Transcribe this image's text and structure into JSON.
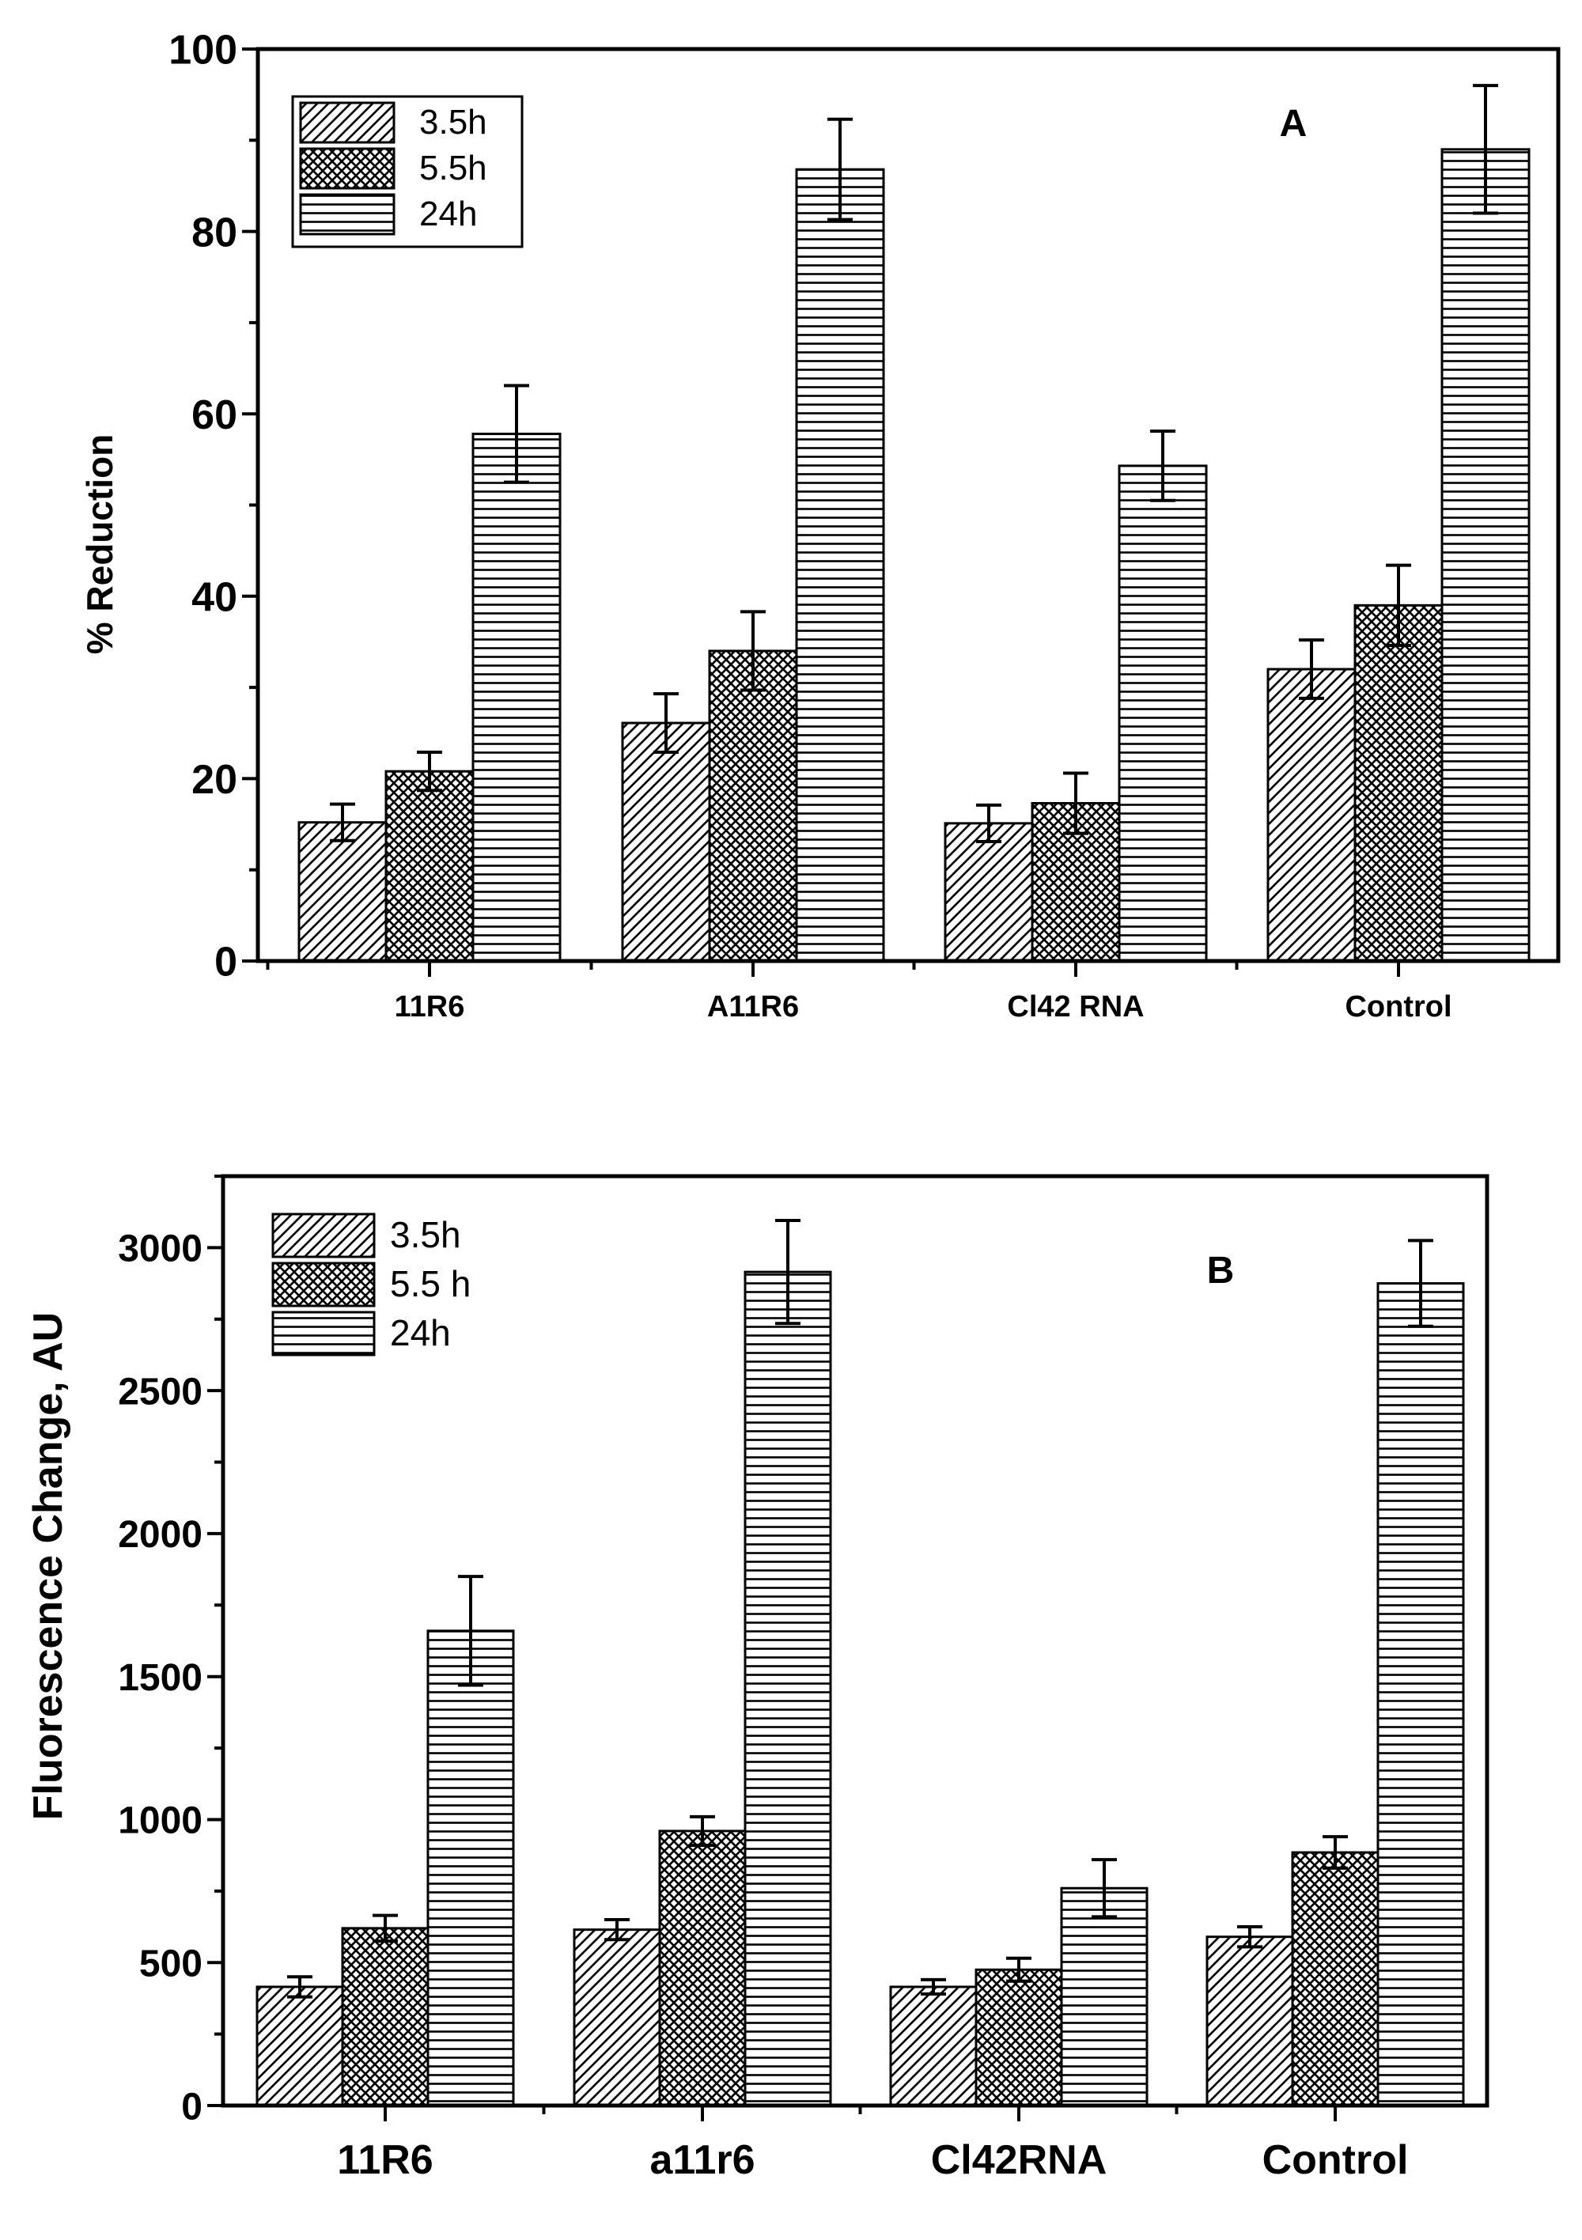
{
  "chart_data": [
    {
      "id": "A",
      "type": "bar",
      "panel_label": "A",
      "ylabel": "% Reduction",
      "xlabel": "",
      "ylim": [
        0,
        100
      ],
      "yticks": [
        0,
        20,
        40,
        60,
        80,
        100
      ],
      "ytick_labels": [
        "0",
        "20",
        "40",
        "60",
        "80",
        "100"
      ],
      "categories": [
        "11R6",
        "A11R6",
        "Cl42 RNA",
        "Control"
      ],
      "legend_position": "top-left",
      "series": [
        {
          "name": "3.5h",
          "pattern": "diagonal",
          "values": [
            15.2,
            26.1,
            15.1,
            32.0
          ],
          "errors": [
            2.0,
            3.2,
            2.0,
            3.2
          ]
        },
        {
          "name": "5.5h",
          "pattern": "crosshatch",
          "values": [
            20.8,
            34.0,
            17.3,
            39.0
          ],
          "errors": [
            2.1,
            4.3,
            3.3,
            4.4
          ]
        },
        {
          "name": "24h",
          "pattern": "horizontal",
          "values": [
            57.8,
            86.8,
            54.3,
            89.0
          ],
          "errors": [
            5.3,
            5.5,
            3.8,
            7.0
          ]
        }
      ]
    },
    {
      "id": "B",
      "type": "bar",
      "panel_label": "B",
      "ylabel": "Fluorescence Change, AU",
      "xlabel": "",
      "ylim": [
        0,
        3250
      ],
      "yticks": [
        0,
        500,
        1000,
        1500,
        2000,
        2500,
        3000
      ],
      "ytick_labels": [
        "0",
        "500",
        "1000",
        "1500",
        "2000",
        "2500",
        "3000"
      ],
      "categories": [
        "11R6",
        "a11r6",
        "Cl42RNA",
        "Control"
      ],
      "legend_position": "top-left",
      "series": [
        {
          "name": "3.5h",
          "pattern": "diagonal",
          "values": [
            415,
            615,
            415,
            590
          ],
          "errors": [
            35,
            35,
            25,
            35
          ]
        },
        {
          "name": "5.5 h",
          "pattern": "crosshatch",
          "values": [
            620,
            960,
            475,
            885
          ],
          "errors": [
            45,
            50,
            40,
            55
          ]
        },
        {
          "name": "24h",
          "pattern": "horizontal",
          "values": [
            1660,
            2915,
            760,
            2875
          ],
          "errors": [
            190,
            180,
            100,
            150
          ]
        }
      ]
    }
  ]
}
